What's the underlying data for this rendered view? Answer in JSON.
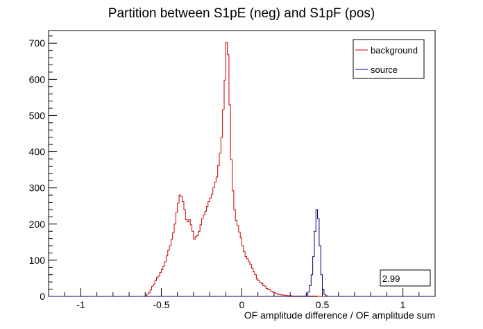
{
  "chart_data": {
    "type": "line",
    "title": "Partition between S1pE (neg) and S1pF (pos)",
    "xlabel": "OF amplitude difference / OF amplitude sum",
    "ylabel": "",
    "xlim": [
      -1.2,
      1.2
    ],
    "ylim": [
      0,
      735
    ],
    "x_ticks": [
      "-1",
      "-0.5",
      "0",
      "0.5",
      "1"
    ],
    "x_tick_values": [
      -1,
      -0.5,
      0,
      0.5,
      1
    ],
    "y_ticks": [
      "0",
      "100",
      "200",
      "300",
      "400",
      "500",
      "600",
      "700"
    ],
    "y_tick_values": [
      0,
      100,
      200,
      300,
      400,
      500,
      600,
      700
    ],
    "grid": false,
    "legend_position": "top-right",
    "histogram_step": true,
    "series": [
      {
        "name": "background",
        "color": "#cc0000",
        "x": [
          -0.6,
          -0.59,
          -0.58,
          -0.57,
          -0.56,
          -0.55,
          -0.54,
          -0.53,
          -0.52,
          -0.51,
          -0.5,
          -0.49,
          -0.48,
          -0.47,
          -0.46,
          -0.45,
          -0.44,
          -0.43,
          -0.42,
          -0.41,
          -0.4,
          -0.39,
          -0.38,
          -0.37,
          -0.36,
          -0.35,
          -0.34,
          -0.33,
          -0.32,
          -0.31,
          -0.3,
          -0.29,
          -0.28,
          -0.27,
          -0.26,
          -0.25,
          -0.24,
          -0.23,
          -0.22,
          -0.21,
          -0.2,
          -0.19,
          -0.18,
          -0.17,
          -0.16,
          -0.15,
          -0.14,
          -0.13,
          -0.12,
          -0.11,
          -0.1,
          -0.09,
          -0.08,
          -0.07,
          -0.06,
          -0.05,
          -0.04,
          -0.03,
          -0.02,
          -0.01,
          0,
          0.01,
          0.02,
          0.03,
          0.04,
          0.05,
          0.06,
          0.07,
          0.08,
          0.09,
          0.1,
          0.11,
          0.12,
          0.13,
          0.14,
          0.15,
          0.16,
          0.17,
          0.18,
          0.19,
          0.2,
          0.21,
          0.22,
          0.23,
          0.24,
          0.25,
          0.26,
          0.27,
          0.28,
          0.29,
          0.3,
          0.31,
          0.32,
          0.33,
          0.34,
          0.35,
          0.36,
          0.37,
          0.38,
          0.39,
          0.4,
          0.41,
          0.42,
          0.43,
          0.44,
          0.45,
          0.46,
          0.47,
          0.48,
          0.49,
          0.5,
          0.51
        ],
        "values": [
          2,
          6,
          10,
          18,
          28,
          34,
          44,
          52,
          56,
          66,
          74,
          84,
          96,
          112,
          128,
          140,
          158,
          176,
          200,
          232,
          258,
          280,
          276,
          262,
          240,
          212,
          206,
          212,
          198,
          180,
          158,
          165,
          168,
          180,
          198,
          215,
          225,
          235,
          248,
          262,
          272,
          282,
          300,
          316,
          330,
          362,
          396,
          440,
          516,
          598,
          702,
          668,
          530,
          378,
          292,
          240,
          210,
          196,
          178,
          162,
          140,
          124,
          110,
          104,
          96,
          88,
          78,
          68,
          60,
          48,
          44,
          38,
          36,
          30,
          28,
          22,
          20,
          18,
          14,
          12,
          10,
          8,
          6,
          5,
          4,
          4,
          3,
          3,
          2,
          2,
          2,
          1,
          1,
          1,
          1,
          1,
          1,
          1,
          1,
          1,
          1,
          1,
          1,
          1,
          1,
          1,
          1,
          0,
          0,
          0,
          0,
          0
        ]
      },
      {
        "name": "source",
        "color": "#000080",
        "x": [
          0.4,
          0.41,
          0.42,
          0.43,
          0.44,
          0.45,
          0.46,
          0.47,
          0.48,
          0.49,
          0.5,
          0.51,
          0.52,
          0.53
        ],
        "values": [
          4,
          12,
          30,
          60,
          110,
          180,
          240,
          215,
          140,
          60,
          20,
          6,
          2,
          0
        ]
      }
    ],
    "stat_box": "2.99"
  }
}
